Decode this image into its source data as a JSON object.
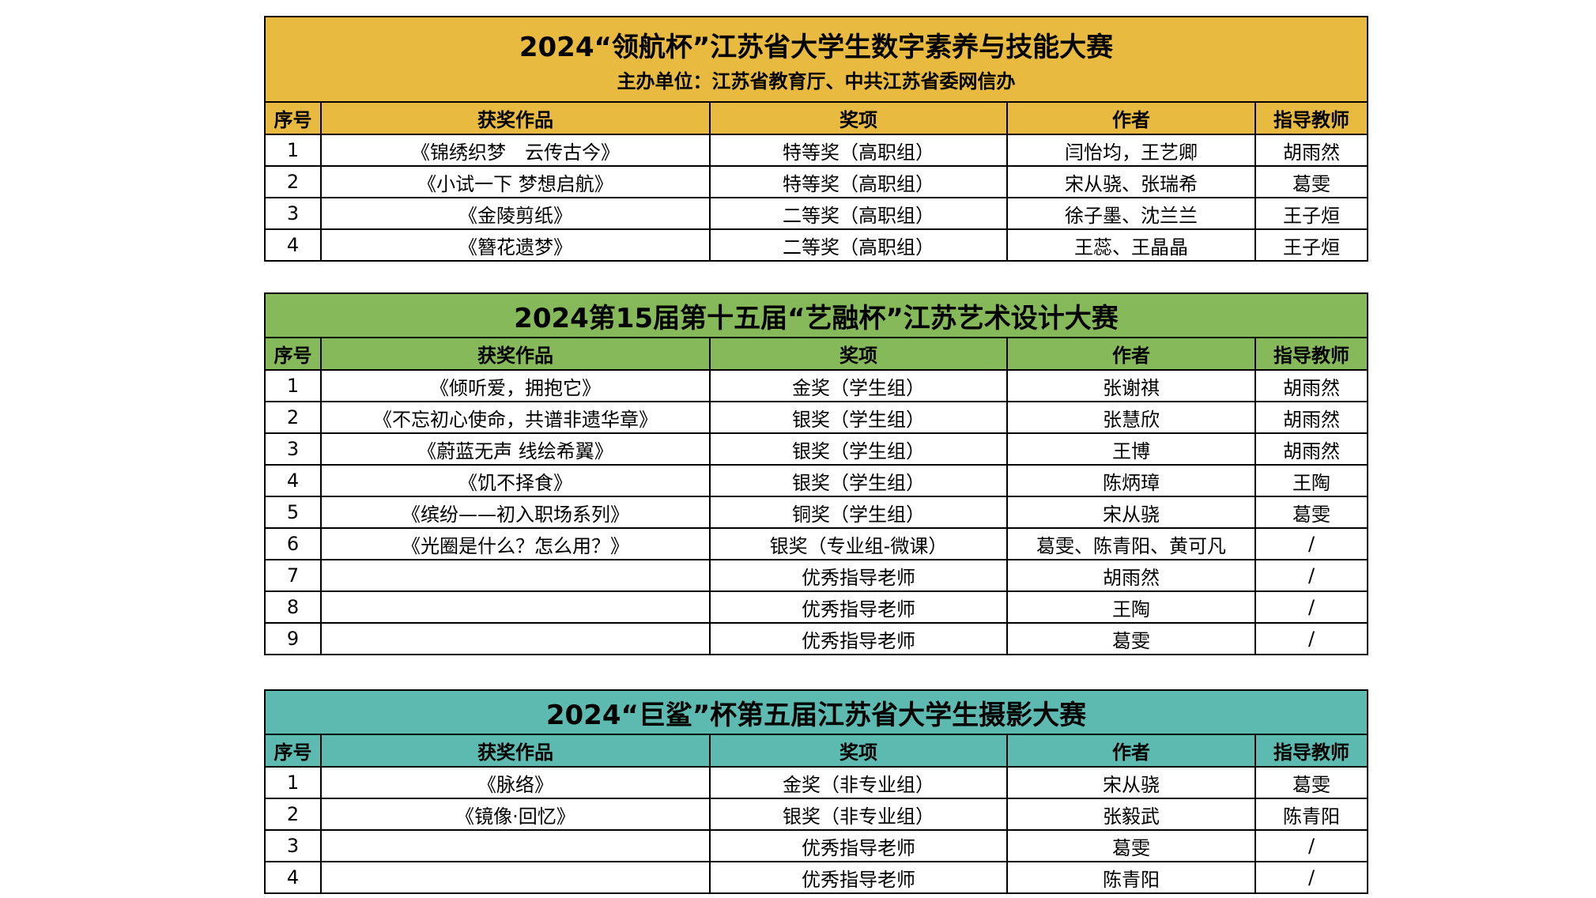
{
  "columns": [
    "序号",
    "获奖作品",
    "奖项",
    "作者",
    "指导教师"
  ],
  "tables": [
    {
      "title": "2024“领航杯”江苏省大学生数字素养与技能大赛",
      "subtitle": "主办单位：江苏省教育厅、中共江苏省委网信办",
      "color": "#E9BA40",
      "rows": [
        [
          "1",
          "《锦绣织梦　云传古今》",
          "特等奖（高职组）",
          "闫怡均，王艺卿",
          "胡雨然"
        ],
        [
          "2",
          "《小试一下 梦想启航》",
          "特等奖（高职组）",
          "宋从骁、张瑞希",
          "葛雯"
        ],
        [
          "3",
          "《金陵剪纸》",
          "二等奖（高职组）",
          "徐子墨、沈兰兰",
          "王子烜"
        ],
        [
          "4",
          "《簪花遗梦》",
          "二等奖（高职组）",
          "王蕊、王晶晶",
          "王子烜"
        ]
      ]
    },
    {
      "title": "2024第15届第十五届“艺融杯”江苏艺术设计大赛",
      "color": "#86B95A",
      "rows": [
        [
          "1",
          "《倾听爱，拥抱它》",
          "金奖（学生组）",
          "张谢祺",
          "胡雨然"
        ],
        [
          "2",
          "《不忘初心使命，共谱非遗华章》",
          "银奖（学生组）",
          "张慧欣",
          "胡雨然"
        ],
        [
          "3",
          "《蔚蓝无声 线绘希翼》",
          "银奖（学生组）",
          "王博",
          "胡雨然"
        ],
        [
          "4",
          "《饥不择食》",
          "银奖（学生组）",
          "陈炳璋",
          "王陶"
        ],
        [
          "5",
          "《缤纷——初入职场系列》",
          "铜奖（学生组）",
          "宋从骁",
          "葛雯"
        ],
        [
          "6",
          "《光圈是什么？怎么用？》",
          "银奖（专业组-微课）",
          "葛雯、陈青阳、黄可凡",
          "/"
        ],
        [
          "7",
          "",
          "优秀指导老师",
          "胡雨然",
          "/"
        ],
        [
          "8",
          "",
          "优秀指导老师",
          "王陶",
          "/"
        ],
        [
          "9",
          "",
          "优秀指导老师",
          "葛雯",
          "/"
        ]
      ]
    },
    {
      "title": "2024“巨鲨”杯第五届江苏省大学生摄影大赛",
      "color": "#5DBAB0",
      "rows": [
        [
          "1",
          "《脉络》",
          "金奖（非专业组）",
          "宋从骁",
          "葛雯"
        ],
        [
          "2",
          "《镜像·回忆》",
          "银奖（非专业组）",
          "张毅武",
          "陈青阳"
        ],
        [
          "3",
          "",
          "优秀指导老师",
          "葛雯",
          "/"
        ],
        [
          "4",
          "",
          "优秀指导老师",
          "陈青阳",
          "/"
        ]
      ]
    }
  ]
}
